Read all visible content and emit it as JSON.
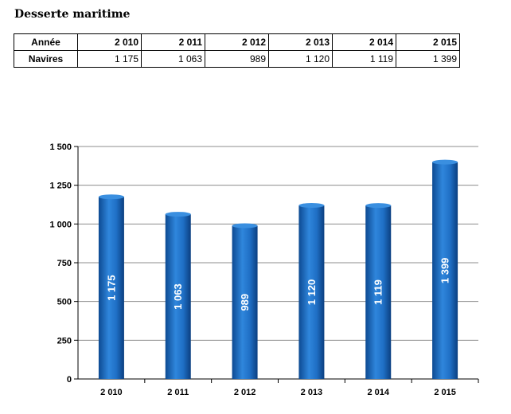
{
  "title": "Desserte maritime",
  "table": {
    "row_header_1": "Année",
    "row_header_2": "Navires",
    "years": [
      "2 010",
      "2 011",
      "2 012",
      "2 013",
      "2 014",
      "2 015"
    ],
    "values": [
      "1 175",
      "1 063",
      "989",
      "1 120",
      "1 119",
      "1 399"
    ]
  },
  "chart_data": {
    "type": "bar",
    "title": "",
    "xlabel": "",
    "ylabel": "",
    "categories": [
      "2 010",
      "2 011",
      "2 012",
      "2 013",
      "2 014",
      "2 015"
    ],
    "values": [
      1175,
      1063,
      989,
      1120,
      1119,
      1399
    ],
    "data_labels": [
      "1 175",
      "1 063",
      "989",
      "1 120",
      "1 119",
      "1 399"
    ],
    "ylim": [
      0,
      1500
    ],
    "yticks": [
      0,
      250,
      500,
      750,
      1000,
      1250,
      1500
    ],
    "ytick_labels": [
      "0",
      "250",
      "500",
      "750",
      "1 000",
      "1 250",
      "1 500"
    ],
    "grid": true,
    "bar_color": "#1f6fc5"
  }
}
